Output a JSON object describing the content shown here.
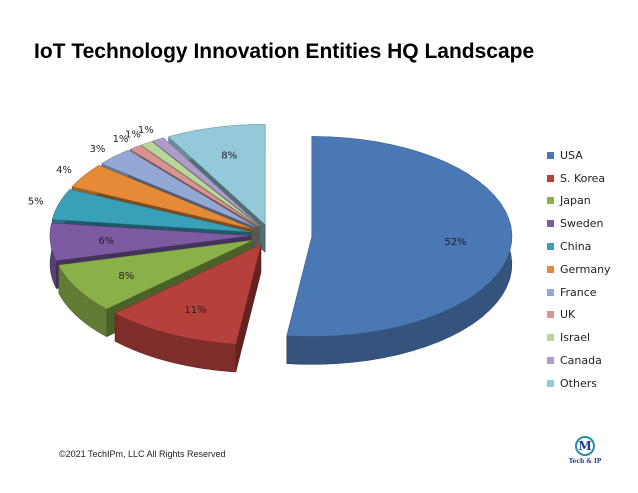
{
  "chart_data": {
    "type": "pie",
    "title": "IoT Technology Innovation Entities HQ Landscape",
    "categories": [
      "USA",
      "S. Korea",
      "Japan",
      "Sweden",
      "China",
      "Germany",
      "France",
      "UK",
      "Israel",
      "Canada",
      "Others"
    ],
    "values": [
      52,
      11,
      8,
      6,
      5,
      4,
      3,
      1,
      1,
      1,
      8
    ],
    "labels": [
      "52%",
      "11%",
      "8%",
      "6%",
      "5%",
      "4%",
      "3%",
      "1%",
      "1%",
      "1%",
      "8%"
    ],
    "colors": [
      "#4a78b4",
      "#b5403c",
      "#8ab04a",
      "#7c5ba3",
      "#3aa0ba",
      "#e58b38",
      "#93a8d4",
      "#d89492",
      "#b9d59a",
      "#ad9cc9",
      "#93c9d8"
    ],
    "legend_position": "right",
    "exploded": true,
    "style": "3d"
  },
  "footer": {
    "copyright": "©2021 TechIPm, LLC All Rights Reserved"
  },
  "logo": {
    "mark": "M",
    "text": "Tech & IP"
  }
}
